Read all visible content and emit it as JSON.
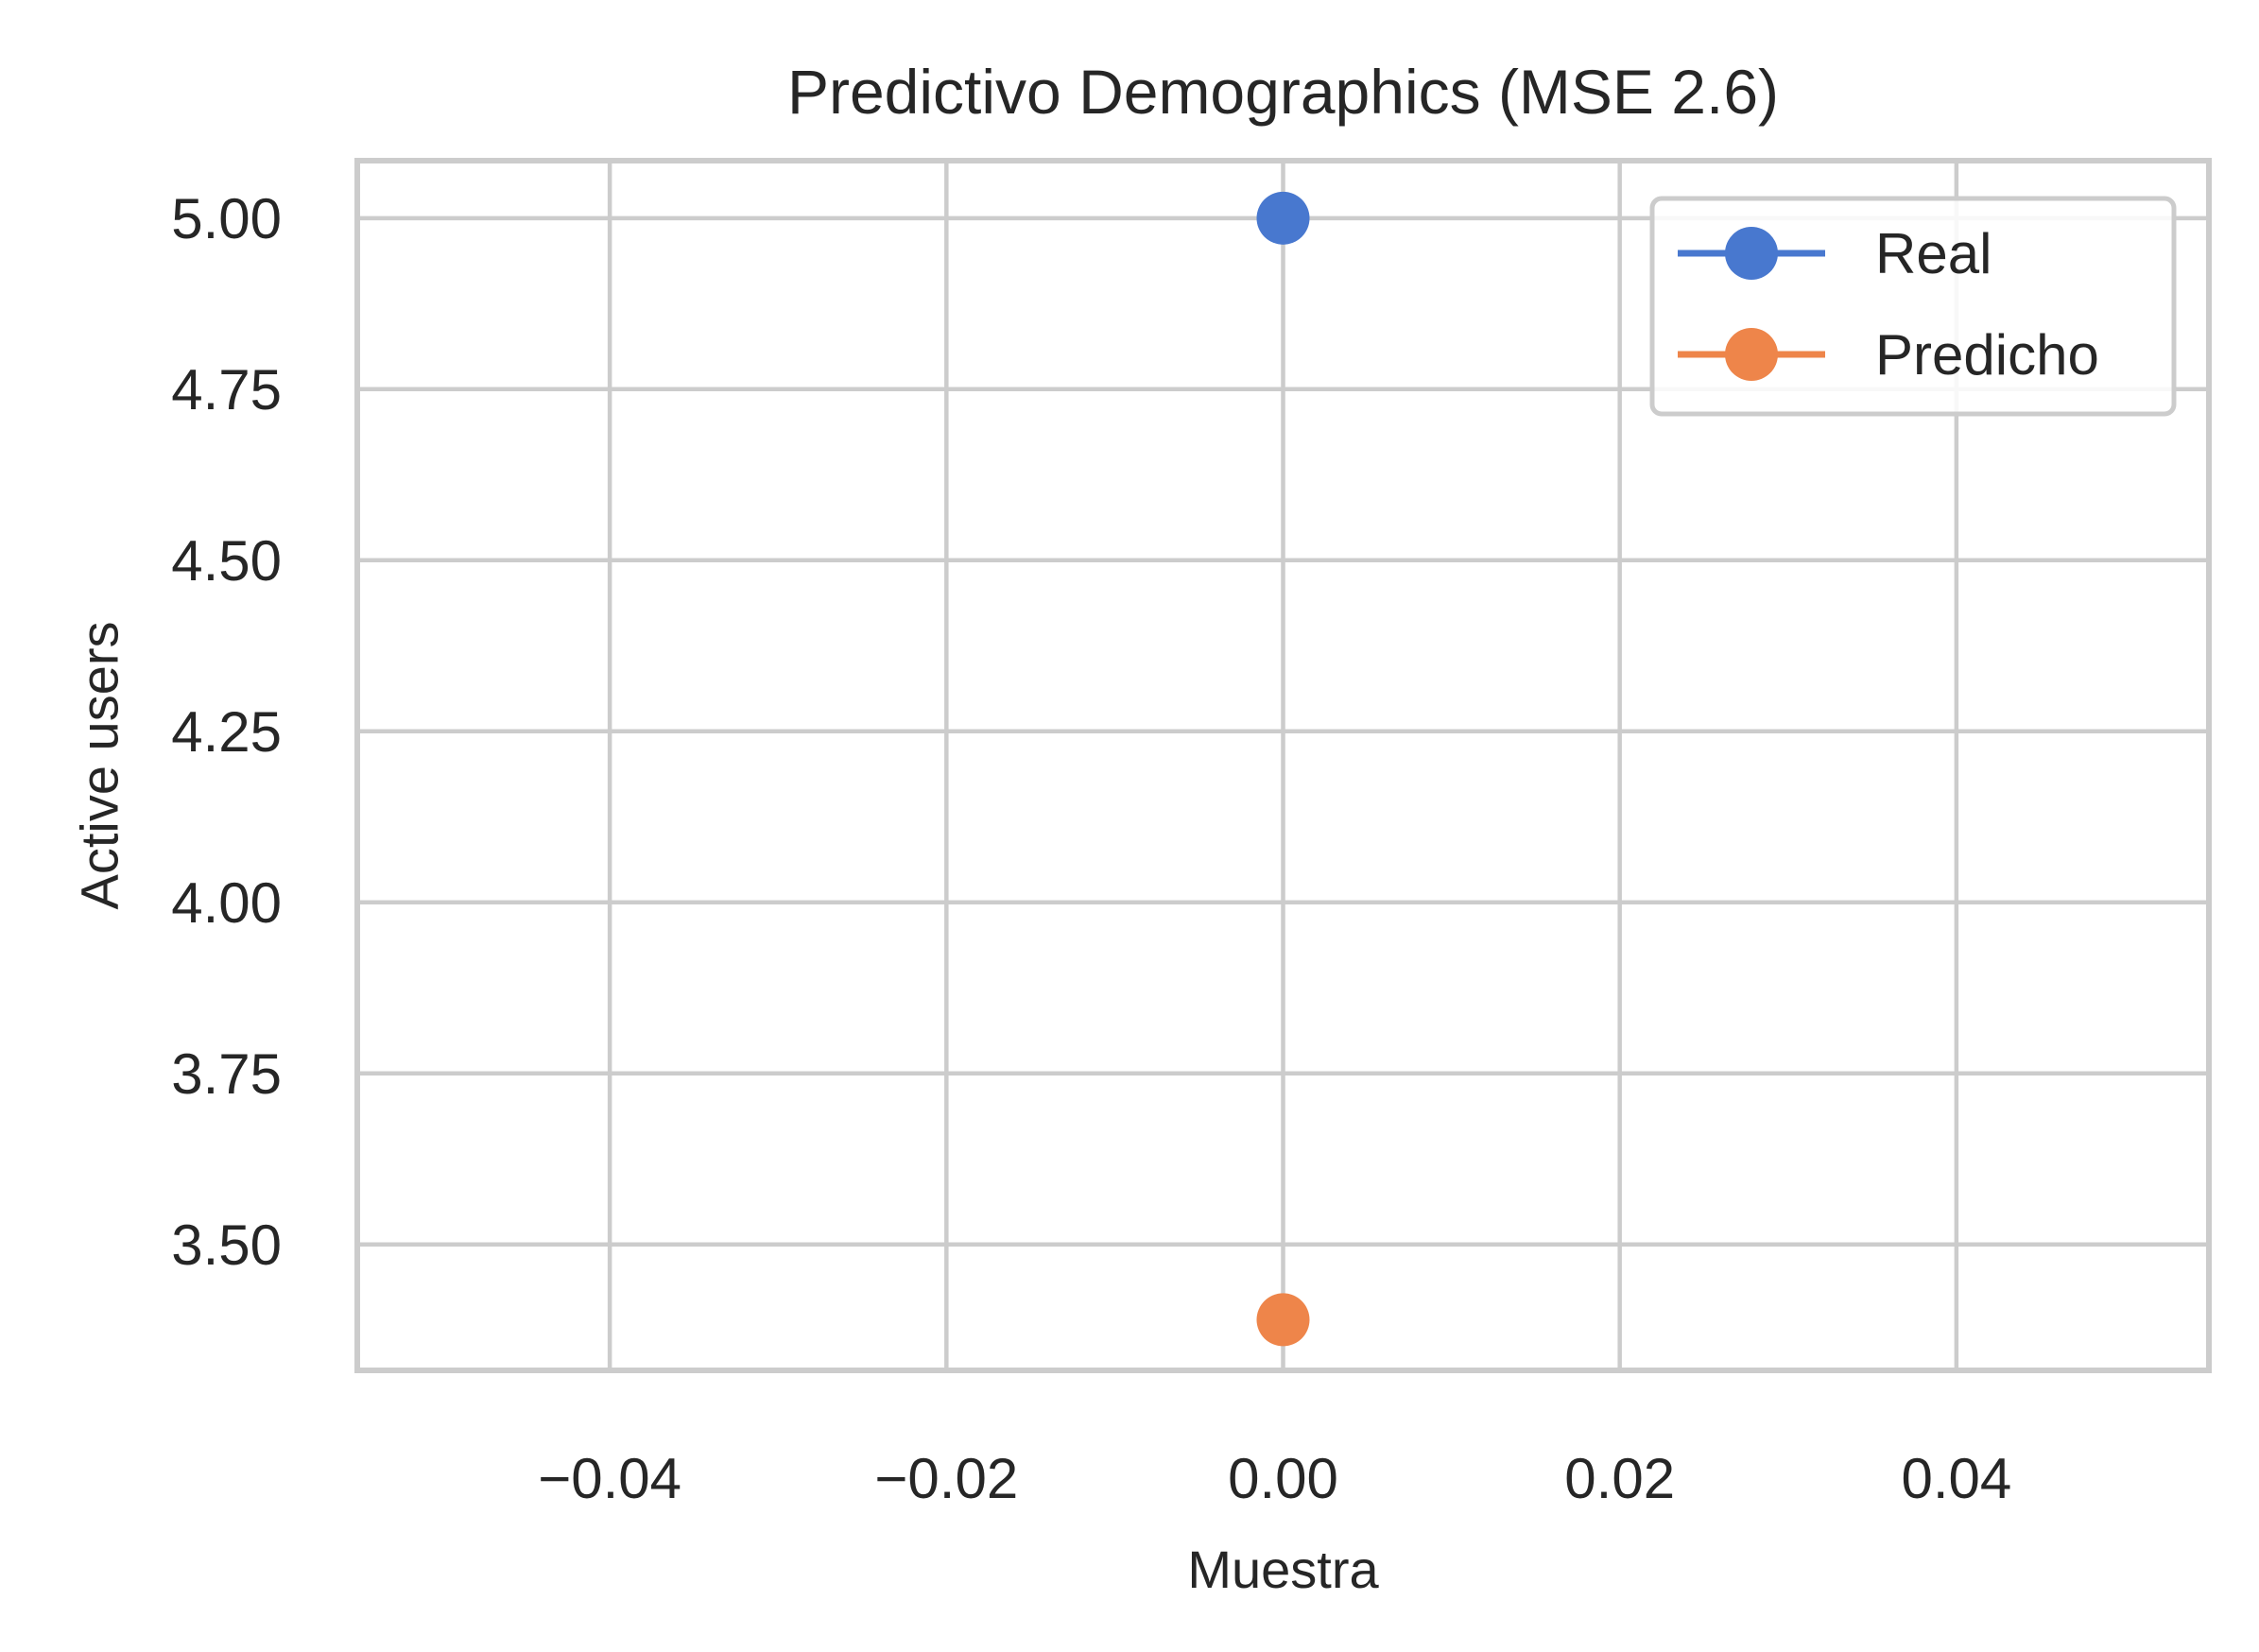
{
  "chart_data": {
    "type": "line",
    "title": "Predictivo Demographics (MSE 2.6)",
    "xlabel": "Muestra",
    "ylabel": "Active users",
    "xlim": [
      -0.055,
      0.055
    ],
    "ylim": [
      3.316,
      5.084
    ],
    "x_ticks": [
      -0.04,
      -0.02,
      0.0,
      0.02,
      0.04
    ],
    "x_tick_labels": [
      "−0.04",
      "−0.02",
      "0.00",
      "0.02",
      "0.04"
    ],
    "y_ticks": [
      3.5,
      3.75,
      4.0,
      4.25,
      4.5,
      4.75,
      5.0
    ],
    "y_tick_labels": [
      "3.50",
      "3.75",
      "4.00",
      "4.25",
      "4.50",
      "4.75",
      "5.00"
    ],
    "grid": true,
    "legend_position": "top-right",
    "series": [
      {
        "name": "Real",
        "color": "#4878cf",
        "x": [
          0
        ],
        "y": [
          5.0
        ]
      },
      {
        "name": "Predicho",
        "color": "#ee854a",
        "x": [
          0
        ],
        "y": [
          3.39
        ]
      }
    ]
  }
}
